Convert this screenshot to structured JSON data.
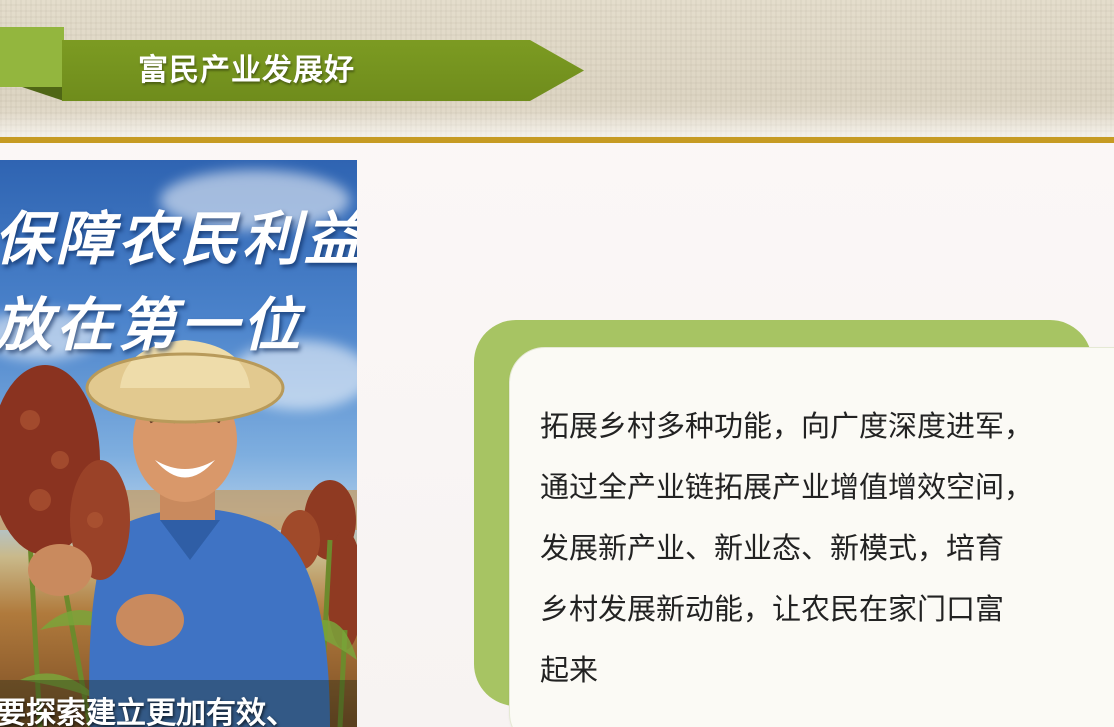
{
  "header": {
    "title": "富民产业发展好"
  },
  "poster": {
    "slogan_line1": "保障农民利益",
    "slogan_line2": "放在第一位",
    "caption": "要探索建立更加有效、"
  },
  "content": {
    "lines": [
      "拓展乡村多种功能，向广度深度进军，",
      "通过全产业链拓展产业增值增效空间，",
      "发展新产业、新业态、新模式，培育",
      "乡村发展新动能，让农民在家门口富",
      "起来"
    ]
  },
  "colors": {
    "banner_green": "#7c9b22",
    "accent_light_green": "#93b63e",
    "card_green": "#a7c463",
    "gold_rule": "#c69b23"
  }
}
